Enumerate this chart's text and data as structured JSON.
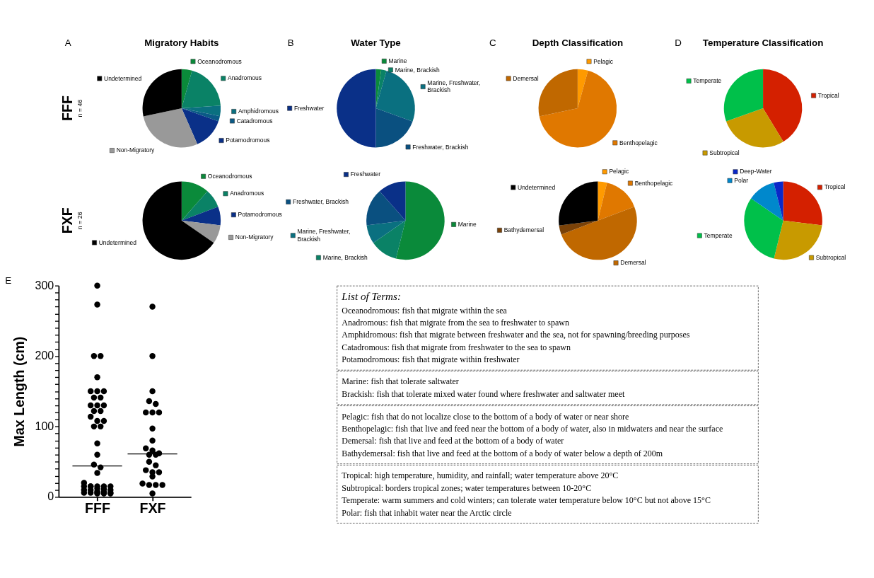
{
  "chart_data": [
    {
      "type": "pie",
      "title": "Migratory Habits",
      "annotations": [
        "A"
      ],
      "ylabel": "FFF",
      "subtitle": "n = 46",
      "legend": "right",
      "categories": [
        "Oceanodromous",
        "Anadromous",
        "Amphidromous",
        "Catadromous",
        "Potamodromous",
        "Non-Migratory",
        "Undetermined"
      ],
      "values": [
        4.3,
        19.6,
        4.3,
        2.2,
        13.0,
        28.3,
        28.3
      ],
      "colors": [
        "#0a8a3a",
        "#0a8266",
        "#0a7080",
        "#0a5a86",
        "#0a3088",
        "#999999",
        "#000000"
      ]
    },
    {
      "type": "pie",
      "title": "Water Type",
      "annotations": [
        "B"
      ],
      "legend": "right",
      "categories": [
        "Marine",
        "Marine, Brackish",
        "Marine, Freshwater, Brackish",
        "Freshwater, Brackish",
        "Freshwater"
      ],
      "values": [
        2.2,
        2.2,
        26.1,
        19.5,
        50.0
      ],
      "colors": [
        "#0a8a3a",
        "#0a8266",
        "#0a7080",
        "#0a5080",
        "#0a3088"
      ]
    },
    {
      "type": "pie",
      "title": "Depth Classification",
      "annotations": [
        "C"
      ],
      "legend": "right",
      "categories": [
        "Pelagic",
        "Benthopelagic",
        "Demersal"
      ],
      "values": [
        4.3,
        67.4,
        28.3
      ],
      "colors": [
        "#ff9a00",
        "#e07800",
        "#c06800"
      ]
    },
    {
      "type": "pie",
      "title": "Temperature Classification",
      "annotations": [
        "D"
      ],
      "legend": "right",
      "categories": [
        "Tropical",
        "Subtropical",
        "Temperate"
      ],
      "values": [
        41.3,
        28.3,
        30.4
      ],
      "colors": [
        "#d42000",
        "#c89a00",
        "#00c04a"
      ]
    },
    {
      "type": "pie",
      "ylabel": "FXF",
      "subtitle": "n = 26",
      "legend": "right",
      "categories": [
        "Oceanodromous",
        "Anadromous",
        "Potamodromous",
        "Non-Migratory",
        "Undetermined"
      ],
      "values": [
        11.5,
        7.7,
        7.7,
        7.7,
        65.4
      ],
      "colors": [
        "#0a8a3a",
        "#0a8266",
        "#0a3088",
        "#999999",
        "#000000"
      ]
    },
    {
      "type": "pie",
      "legend": "top left",
      "categories": [
        "Marine",
        "Marine, Brackish",
        "Marine, Freshwater, Brackish",
        "Freshwater, Brackish",
        "Freshwater"
      ],
      "values": [
        53.9,
        11.5,
        7.7,
        15.4,
        11.5
      ],
      "colors": [
        "#0a8a3a",
        "#0a8266",
        "#0a7080",
        "#0a5080",
        "#0a3088"
      ]
    },
    {
      "type": "pie",
      "legend": "top left",
      "categories": [
        "Pelagic",
        "Benthopelagic",
        "Demersal",
        "Bathydemersal",
        "Undetermined"
      ],
      "values": [
        3.8,
        15.4,
        50.0,
        3.8,
        27.0
      ],
      "colors": [
        "#ff9a00",
        "#e07800",
        "#c06800",
        "#7a4208",
        "#000000"
      ]
    },
    {
      "type": "pie",
      "legend": "top left",
      "categories": [
        "Tropical",
        "Subtropical",
        "Temperate",
        "Polar",
        "Deep-Water"
      ],
      "values": [
        26.9,
        26.9,
        30.8,
        11.5,
        3.9
      ],
      "colors": [
        "#d42000",
        "#c89a00",
        "#00c04a",
        "#0088cc",
        "#0a28c8"
      ]
    },
    {
      "type": "scatter",
      "annotations": [
        "E"
      ],
      "ylabel": "Max Length (cm)",
      "categories": [
        "FFF",
        "FXF"
      ],
      "ylim": [
        0,
        300
      ],
      "yticks": [
        0,
        {
          "value": 10,
          "label": null
        },
        {
          "value": 20,
          "label": null
        },
        {
          "value": 30,
          "label": null
        },
        {
          "value": 40,
          "label": null
        },
        {
          "value": 50,
          "label": null
        },
        {
          "value": 60,
          "label": null
        },
        {
          "value": 70,
          "label": null
        },
        {
          "value": 80,
          "label": null
        },
        {
          "value": 90,
          "label": null
        },
        100,
        {
          "value": 110,
          "label": null
        },
        {
          "value": 120,
          "label": null
        },
        {
          "value": 130,
          "label": null
        },
        {
          "value": 140,
          "label": null
        },
        {
          "value": 150,
          "label": null
        },
        {
          "value": 160,
          "label": null
        },
        {
          "value": 170,
          "label": null
        },
        {
          "value": 180,
          "label": null
        },
        {
          "value": 190,
          "label": null
        },
        200,
        {
          "value": 210,
          "label": null
        },
        {
          "value": 220,
          "label": null
        },
        {
          "value": 230,
          "label": null
        },
        {
          "value": 240,
          "label": null
        },
        {
          "value": 250,
          "label": null
        },
        {
          "value": 260,
          "label": null
        },
        {
          "value": 270,
          "label": null
        },
        {
          "value": 280,
          "label": null
        },
        {
          "value": 290,
          "label": null
        },
        300
      ],
      "series": [
        {
          "color": "#000000",
          "marker": "circle",
          "x": [
            "FFF",
            "FFF",
            "FFF",
            "FFF",
            "FFF",
            "FFF",
            "FFF",
            "FFF",
            "FFF",
            "FFF",
            "FFF",
            "FFF",
            "FFF",
            "FFF",
            "FFF",
            "FFF",
            "FFF",
            "FFF",
            "FFF",
            "FFF",
            "FFF",
            "FFF",
            "FFF",
            "FFF",
            "FFF",
            "FFF",
            "FFF",
            "FFF",
            "FFF",
            "FFF",
            "FFF",
            "FFF",
            "FFF",
            "FFF",
            "FFF",
            "FFF",
            "FFF",
            "FFF",
            "FFF",
            "FFF",
            "FFF",
            "FFF",
            "FFF",
            "FFF",
            "FFF",
            "FFF",
            "FXF",
            "FXF",
            "FXF",
            "FXF",
            "FXF",
            "FXF",
            "FXF",
            "FXF",
            "FXF",
            "FXF",
            "FXF",
            "FXF",
            "FXF",
            "FXF",
            "FXF",
            "FXF",
            "FXF",
            "FXF",
            "FXF",
            "FXF",
            "FXF",
            "FXF",
            "FXF",
            "FXF",
            "FXF",
            "FXF"
          ],
          "values": [
            300,
            273,
            200,
            200,
            170,
            150,
            150,
            150,
            141,
            141,
            130,
            130,
            130,
            122,
            122,
            114,
            108,
            108,
            100,
            100,
            76,
            60,
            46,
            42,
            34,
            20,
            15,
            15,
            15,
            15,
            15,
            15,
            12,
            11,
            10,
            10,
            10,
            8,
            7,
            6,
            6,
            6,
            6,
            5,
            5,
            5,
            270,
            200,
            150,
            136,
            132,
            120,
            120,
            120,
            97,
            80,
            69,
            66,
            62,
            60,
            60,
            50,
            45,
            38,
            35,
            35,
            29,
            19,
            17,
            17,
            17,
            5
          ]
        }
      ],
      "ref_lines": [
        {
          "axis": "y",
          "value": 44,
          "color": "#000000",
          "line_style": "solid"
        },
        {
          "axis": "y",
          "value": 61,
          "color": "#000000",
          "line_style": "solid"
        }
      ]
    },
    {
      "type": "other",
      "title": "List of Terms:",
      "annotations": [
        "Oceanodromous: fish that migrate within the sea",
        "Anadromous: fish that migrate from the sea to freshwater to spawn",
        "Amphidromous: fish that migrate between freshwater and the sea, not for spawning/breeding purposes",
        "Catadromous: fish that migrate from freshwater to the sea to spawn",
        "Potamodromous: fish that migrate within freshwater"
      ]
    },
    {
      "type": "other",
      "annotations": [
        "Marine: fish that tolerate saltwater",
        "Brackish: fish that tolerate mixed water found where freshwater and saltwater meet"
      ]
    },
    {
      "type": "other",
      "annotations": [
        "Pelagic: fish that do not localize close to the bottom of a body of water or near shore",
        "Benthopelagic: fish that live and feed near the bottom of a body of water, also in midwaters and near the surface",
        "Demersal: fish that live and feed at the bottom of a body of water",
        "Bathydemersal: fish that live and feed at the bottom of a body of water below a depth of 200m"
      ]
    },
    {
      "type": "other",
      "annotations": [
        "Tropical: high temperature, humidity, and rainfall; water temperature above 20°C",
        "Subtropical: borders tropical zones; water temperatures between 10-20°C",
        "Temperate: warm summers and cold winters; can tolerate water temperature below 10°C but not above 15°C",
        "Polar: fish that inhabit water near the Arctic circle"
      ]
    }
  ]
}
